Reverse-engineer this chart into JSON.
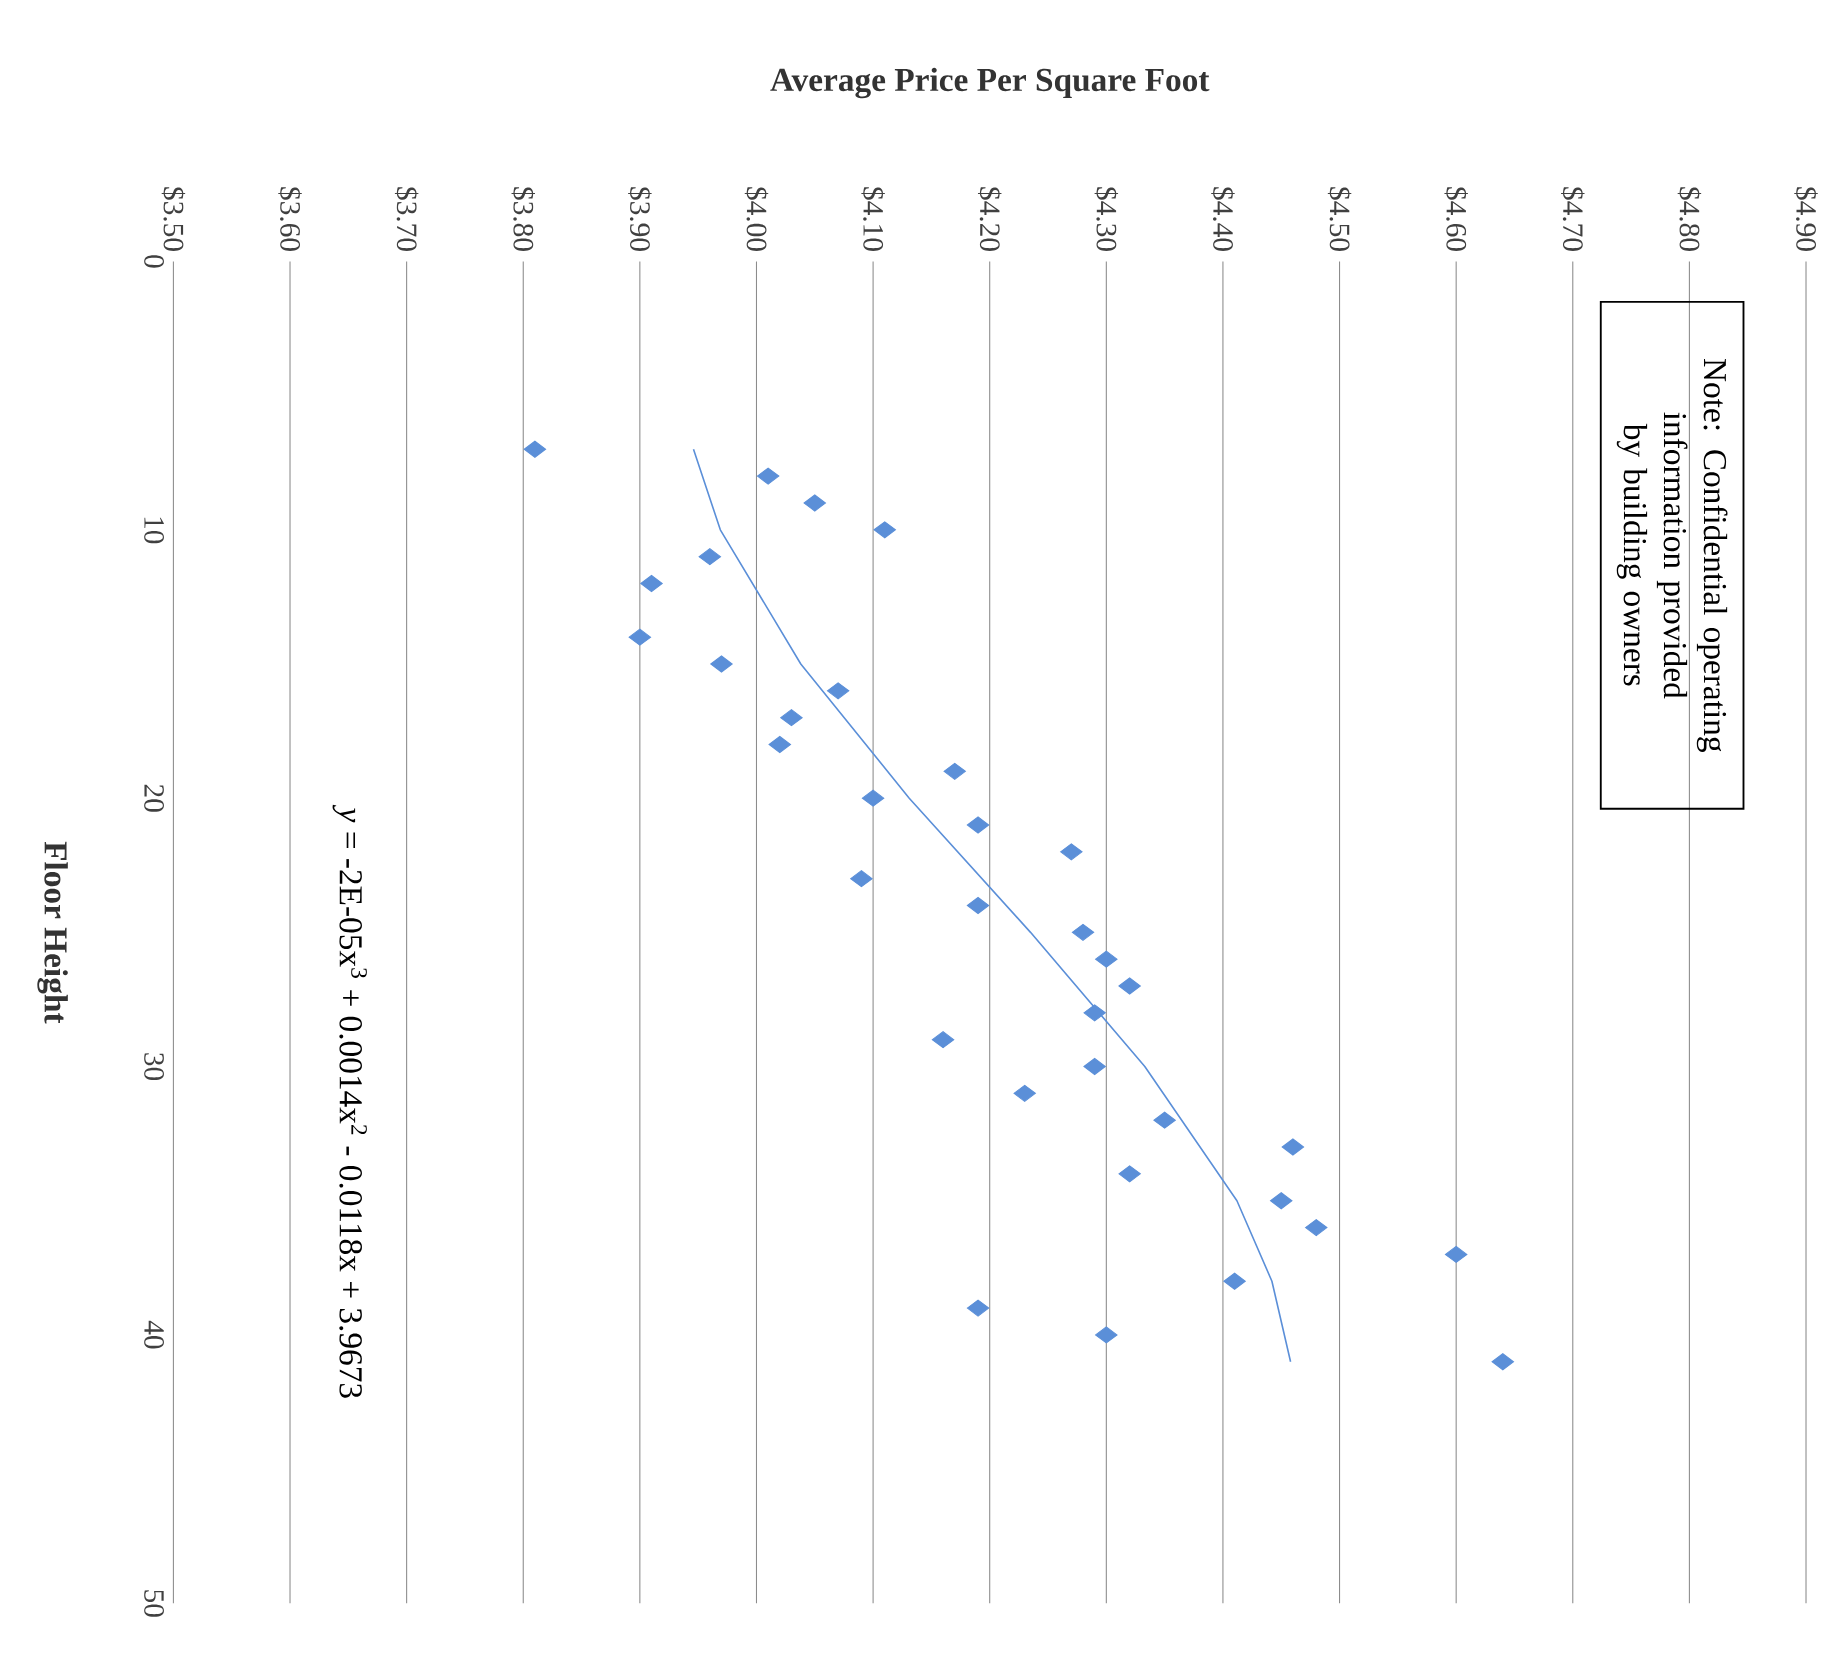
{
  "chart_data": {
    "type": "scatter",
    "xlabel": "Average Price Per Square Foot",
    "ylabel": "Floor Height",
    "xlim": [
      3.5,
      4.9
    ],
    "xticks": [
      {
        "value": 3.5,
        "label": "$3.50"
      },
      {
        "value": 3.6,
        "label": "$3.60"
      },
      {
        "value": 3.7,
        "label": "$3.70"
      },
      {
        "value": 3.8,
        "label": "$3.80"
      },
      {
        "value": 3.9,
        "label": "$3.90"
      },
      {
        "value": 4.0,
        "label": "$4.00"
      },
      {
        "value": 4.1,
        "label": "$4.10"
      },
      {
        "value": 4.2,
        "label": "$4.20"
      },
      {
        "value": 4.3,
        "label": "$4.30"
      },
      {
        "value": 4.4,
        "label": "$4.40"
      },
      {
        "value": 4.5,
        "label": "$4.50"
      },
      {
        "value": 4.6,
        "label": "$4.60"
      },
      {
        "value": 4.7,
        "label": "$4.70"
      },
      {
        "value": 4.8,
        "label": "$4.80"
      },
      {
        "value": 4.9,
        "label": "$4.90"
      }
    ],
    "ylim": [
      50,
      0
    ],
    "yticks": [
      0,
      10,
      20,
      30,
      40,
      50
    ],
    "grid": "x",
    "marker": "diamond",
    "series": [
      {
        "color": "#5b8fd8",
        "x": [
          3.81,
          4.01,
          4.05,
          4.11,
          3.96,
          3.91,
          3.9,
          3.97,
          4.07,
          4.03,
          4.02,
          4.17,
          4.1,
          4.19,
          4.27,
          4.09,
          4.19,
          4.28,
          4.3,
          4.32,
          4.29,
          4.16,
          4.29,
          4.23,
          4.35,
          4.46,
          4.32,
          4.45,
          4.48,
          4.6,
          4.41,
          4.19,
          4.3,
          4.64
        ],
        "values": [
          7,
          8,
          9,
          10,
          11,
          12,
          14,
          15,
          16,
          17,
          18,
          19,
          20,
          21,
          22,
          23,
          24,
          25,
          26,
          27,
          28,
          29,
          30,
          31,
          32,
          33,
          34,
          35,
          36,
          37,
          38,
          39,
          40,
          41
        ]
      },
      {
        "type": "line",
        "color": "#5b8fd8",
        "marker": "none",
        "x": [
          3.946,
          3.969,
          4.038,
          4.131,
          4.235,
          4.333,
          4.412,
          4.442,
          4.458
        ],
        "values": [
          7,
          10,
          15,
          20,
          25,
          30,
          35,
          38,
          41
        ]
      }
    ],
    "annotations": [
      "*y* = -2E-05x$^{3}$ + 0.0014x$^{2}$ - 0.0118x + 3.9673",
      "Note:  Confidential operating information provided by building owners"
    ]
  }
}
